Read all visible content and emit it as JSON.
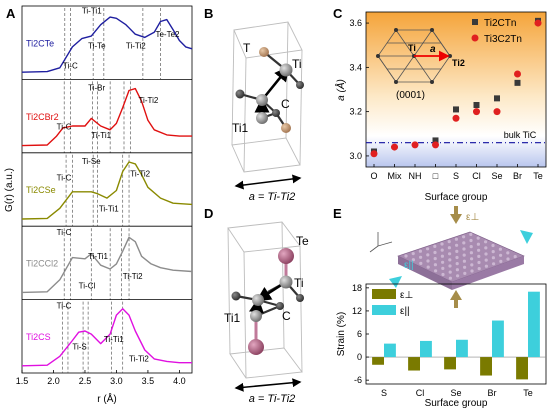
{
  "panels": {
    "A": {
      "letter": "A"
    },
    "B": {
      "letter": "B",
      "caption": "a = Ti-Ti2",
      "atoms": {
        "t": "T",
        "ti": "Ti",
        "c": "C",
        "ti1": "Ti1"
      }
    },
    "C": {
      "letter": "C"
    },
    "D": {
      "letter": "D",
      "caption": "a = Ti-Ti2",
      "atoms": {
        "te": "Te",
        "ti": "Ti",
        "c": "C",
        "ti1": "Ti1"
      }
    },
    "E": {
      "letter": "E",
      "labels": {
        "eps_perp": "ε⊥",
        "eps_par": "ε||"
      }
    }
  },
  "chart_data": [
    {
      "id": "A",
      "type": "line",
      "xlabel": "r (Å)",
      "ylabel": "G(r) (a.u.)",
      "xlim": [
        1.5,
        4.2
      ],
      "xticks": [
        "1.5",
        "2.0",
        "2.5",
        "3.0",
        "3.5",
        "4.0"
      ],
      "grid": false,
      "series": [
        {
          "name": "Ti2CTe",
          "color": "#1f1fa0",
          "x": [
            1.5,
            1.9,
            2.1,
            2.3,
            2.45,
            2.6,
            2.75,
            2.9,
            3.0,
            3.15,
            3.3,
            3.45,
            3.6,
            3.7,
            3.8,
            3.9,
            4.0,
            4.1,
            4.2
          ],
          "y": [
            0.05,
            0.06,
            0.12,
            0.45,
            0.58,
            0.62,
            0.8,
            0.92,
            0.9,
            0.8,
            0.65,
            0.6,
            0.68,
            0.85,
            0.88,
            0.72,
            0.55,
            0.45,
            0.42
          ],
          "labels": [
            "Ti-C",
            "Ti-Ti1",
            "Ti-Te",
            "Ti-Ti2",
            "Te-Te2"
          ]
        },
        {
          "name": "Ti2CBr2",
          "color": "#e01010",
          "x": [
            1.5,
            1.9,
            2.05,
            2.15,
            2.3,
            2.5,
            2.6,
            2.75,
            2.9,
            3.0,
            3.1,
            3.2,
            3.3,
            3.4,
            3.5,
            3.6,
            3.8,
            4.0,
            4.2
          ],
          "y": [
            0.05,
            0.06,
            0.2,
            0.33,
            0.36,
            0.36,
            0.48,
            0.36,
            0.3,
            0.4,
            0.65,
            0.92,
            0.95,
            0.75,
            0.45,
            0.3,
            0.22,
            0.2,
            0.2
          ],
          "labels": [
            "Ti-C",
            "Ti-Br",
            "Ti-Ti1",
            "Ti-Ti2"
          ]
        },
        {
          "name": "Ti2CSe",
          "color": "#8a8a00",
          "x": [
            1.5,
            1.9,
            2.1,
            2.3,
            2.5,
            2.6,
            2.7,
            2.85,
            3.0,
            3.1,
            3.2,
            3.3,
            3.4,
            3.5,
            3.7,
            3.9,
            4.2
          ],
          "y": [
            0.05,
            0.06,
            0.22,
            0.48,
            0.48,
            0.48,
            0.45,
            0.38,
            0.5,
            0.8,
            0.95,
            0.92,
            0.75,
            0.55,
            0.38,
            0.3,
            0.28
          ],
          "labels": [
            "Ti-C",
            "Ti-Se",
            "Ti-Ti1",
            "Ti-Ti2"
          ]
        },
        {
          "name": "Ti2CCl2",
          "color": "#8c8c8c",
          "x": [
            1.5,
            1.9,
            2.1,
            2.3,
            2.5,
            2.6,
            2.75,
            2.9,
            3.0,
            3.1,
            3.2,
            3.3,
            3.4,
            3.55,
            3.7,
            3.9,
            4.2
          ],
          "y": [
            0.05,
            0.06,
            0.25,
            0.6,
            0.58,
            0.66,
            0.48,
            0.42,
            0.5,
            0.7,
            0.92,
            0.85,
            0.62,
            0.5,
            0.44,
            0.4,
            0.38
          ],
          "labels": [
            "Ti-C",
            "Ti-Ti1",
            "Ti-Cl",
            "Ti-Ti2"
          ]
        },
        {
          "name": "Ti2CS",
          "color": "#e010e0",
          "x": [
            1.5,
            1.9,
            2.1,
            2.3,
            2.4,
            2.5,
            2.6,
            2.75,
            2.9,
            3.0,
            3.1,
            3.2,
            3.3,
            3.45,
            3.6,
            3.8,
            4.0,
            4.2
          ],
          "y": [
            0.05,
            0.06,
            0.2,
            0.45,
            0.58,
            0.6,
            0.55,
            0.4,
            0.55,
            0.85,
            0.95,
            0.85,
            0.6,
            0.3,
            0.16,
            0.12,
            0.1,
            0.1
          ],
          "labels": [
            "Ti-C",
            "Ti-S",
            "Ti-Ti1",
            "Ti-Ti2"
          ]
        }
      ]
    },
    {
      "id": "C",
      "type": "scatter",
      "xlabel": "Surface group",
      "ylabel": "a (Å)",
      "categories": [
        "O",
        "Mix",
        "NH",
        "□",
        "S",
        "Cl",
        "Se",
        "Br",
        "Te"
      ],
      "ylim": [
        2.95,
        3.65
      ],
      "yticks": [
        "3.0",
        "3.2",
        "3.4",
        "3.6"
      ],
      "grid": false,
      "legend": "top-right",
      "series": [
        {
          "name": "Ti2CTn",
          "marker": "square",
          "color": "#3a3a3a",
          "values": [
            3.02,
            null,
            null,
            3.07,
            3.21,
            3.23,
            3.26,
            3.33,
            3.61
          ]
        },
        {
          "name": "Ti3C2Tn",
          "marker": "circle",
          "color": "#e02020",
          "values": [
            3.01,
            3.04,
            3.05,
            3.05,
            3.17,
            3.2,
            3.2,
            3.37,
            3.6
          ]
        }
      ],
      "reference_line": {
        "label": "bulk TiC",
        "value": 3.06,
        "color": "#1010a0"
      },
      "inset": {
        "label_ti": "Ti",
        "label_ti2": "Ti2",
        "label_a": "a",
        "label_plane": "(0001)"
      }
    },
    {
      "id": "E",
      "type": "bar",
      "xlabel": "Surface group",
      "ylabel": "Strain (%)",
      "categories": [
        "S",
        "Cl",
        "Se",
        "Br",
        "Te"
      ],
      "ylim": [
        -7,
        19
      ],
      "yticks": [
        "-6",
        "0",
        "6",
        "12",
        "18"
      ],
      "grid": false,
      "legend": "top-left",
      "series": [
        {
          "name": "ε⊥",
          "color": "#7a7a00",
          "values": [
            -2.0,
            -3.5,
            -3.2,
            -4.8,
            -5.8
          ]
        },
        {
          "name": "ε||",
          "color": "#3dcfdc",
          "values": [
            3.5,
            4.2,
            4.5,
            9.5,
            17.0
          ]
        }
      ]
    }
  ]
}
